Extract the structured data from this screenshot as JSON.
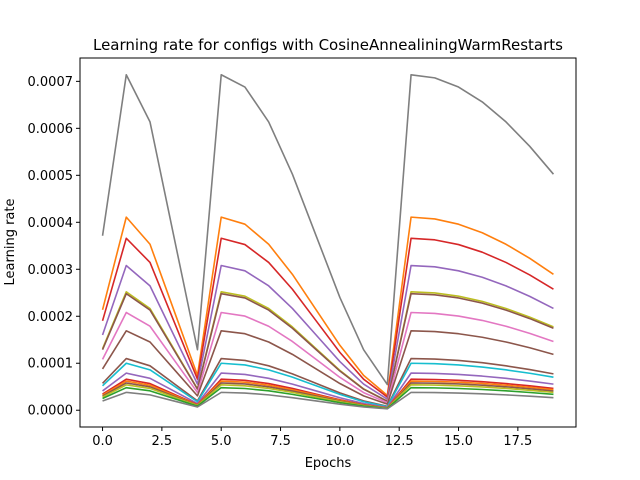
{
  "chart_data": {
    "type": "line",
    "title": "Learning rate for configs with CosineAnnealiningWarmRestarts",
    "xlabel": "Epochs",
    "ylabel": "Learning rate",
    "xlim": [
      -0.95,
      19.95
    ],
    "ylim": [
      -3.57e-05,
      0.0007497
    ],
    "x_ticks": [
      0.0,
      2.5,
      5.0,
      7.5,
      10.0,
      12.5,
      15.0,
      17.5
    ],
    "x_tick_labels": [
      "0.0",
      "2.5",
      "5.0",
      "7.5",
      "10.0",
      "12.5",
      "15.0",
      "17.5"
    ],
    "y_ticks": [
      0.0,
      0.0001,
      0.0002,
      0.0003,
      0.0004,
      0.0005,
      0.0006,
      0.0007
    ],
    "y_tick_labels": [
      "0.0000",
      "0.0001",
      "0.0002",
      "0.0003",
      "0.0004",
      "0.0005",
      "0.0006",
      "0.0007"
    ],
    "grid": false,
    "legend": "none",
    "x": [
      0,
      1,
      2,
      3,
      4,
      5,
      6,
      7,
      8,
      9,
      10,
      11,
      12,
      13,
      14,
      15,
      16,
      17,
      18,
      19
    ],
    "shape": {
      "ratio_sequence": [
        0.5,
        1.0,
        0.8536,
        0.5,
        0.1464,
        1.0,
        0.9619,
        0.8536,
        0.6913,
        0.5,
        0.3087,
        0.1464,
        0.0381,
        1.0,
        0.9904,
        0.9619,
        0.9157,
        0.8536,
        0.7778,
        0.6913
      ],
      "min_fraction": 0.04
    },
    "series": [
      {
        "color": "#7f7f7f",
        "max_lr": 0.000714
      },
      {
        "color": "#ff7f0e",
        "max_lr": 0.000411
      },
      {
        "color": "#d62728",
        "max_lr": 0.000366
      },
      {
        "color": "#9467bd",
        "max_lr": 0.000308
      },
      {
        "color": "#bcbd22",
        "max_lr": 0.000252
      },
      {
        "color": "#8c564b",
        "max_lr": 0.000248
      },
      {
        "color": "#e377c2",
        "max_lr": 0.000208
      },
      {
        "color": "#8c564b",
        "max_lr": 0.000169
      },
      {
        "color": "#8c564b",
        "max_lr": 0.00011
      },
      {
        "color": "#17becf",
        "max_lr": 0.0001
      },
      {
        "color": "#9467bd",
        "max_lr": 7.9e-05
      },
      {
        "color": "#d62728",
        "max_lr": 6.6e-05
      },
      {
        "color": "#ff7f0e",
        "max_lr": 6.2e-05
      },
      {
        "color": "#8c564b",
        "max_lr": 5.8e-05
      },
      {
        "color": "#bcbd22",
        "max_lr": 5.4e-05
      },
      {
        "color": "#2ca02c",
        "max_lr": 4.8e-05
      },
      {
        "color": "#7f7f7f",
        "max_lr": 3.8e-05
      }
    ]
  }
}
